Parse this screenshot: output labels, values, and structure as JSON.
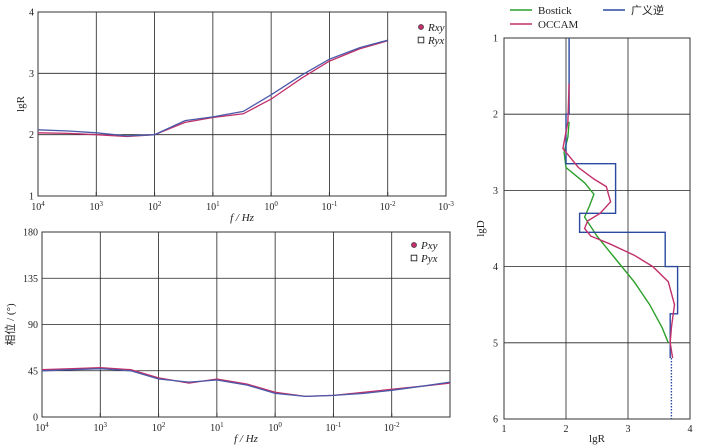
{
  "chart_data": [
    {
      "id": "resistivity",
      "type": "line",
      "ylabel": "lgR",
      "xlabel": "f / Hz",
      "x_scale": "log-reversed",
      "xlim": [
        10000,
        0.001
      ],
      "ylim": [
        1,
        4
      ],
      "x_ticks": [
        "10^4",
        "10^3",
        "10^2",
        "10^1",
        "10^0",
        "10^-1",
        "10^-2",
        "10^-3"
      ],
      "y_ticks": [
        "1",
        "2",
        "3",
        "4"
      ],
      "grid": true,
      "legend_position": "top-right",
      "series": [
        {
          "name": "Rxy",
          "color": "#c0306a",
          "x": [
            10000,
            3000,
            1000,
            300,
            100,
            30,
            10,
            3,
            1,
            0.3,
            0.1,
            0.03,
            0.01
          ],
          "y": [
            2.03,
            2.02,
            2.0,
            1.97,
            2.0,
            2.2,
            2.28,
            2.34,
            2.58,
            2.92,
            3.2,
            3.4,
            3.53
          ]
        },
        {
          "name": "Ryx",
          "color": "#4a5aa8",
          "x": [
            10000,
            3000,
            1000,
            300,
            100,
            30,
            10,
            3,
            1,
            0.3,
            0.1,
            0.03,
            0.01
          ],
          "y": [
            2.08,
            2.06,
            2.03,
            1.98,
            2.0,
            2.23,
            2.29,
            2.38,
            2.65,
            2.97,
            3.23,
            3.42,
            3.54
          ]
        }
      ]
    },
    {
      "id": "phase",
      "type": "line",
      "ylabel": "相位 / (°)",
      "xlabel": "f / Hz",
      "x_scale": "log-reversed",
      "xlim": [
        10000,
        0.001
      ],
      "ylim": [
        0,
        180
      ],
      "x_ticks": [
        "10^4",
        "10^3",
        "10^2",
        "10^1",
        "10^0",
        "10^-1",
        "10^-2"
      ],
      "y_ticks": [
        "0",
        "45",
        "90",
        "135",
        "180"
      ],
      "grid": true,
      "legend_position": "top-right",
      "series": [
        {
          "name": "Pxy",
          "color": "#c0306a",
          "x": [
            10000,
            3000,
            1000,
            300,
            100,
            30,
            10,
            3,
            1,
            0.3,
            0.1,
            0.03,
            0.01,
            0.003,
            0.001
          ],
          "y": [
            46,
            47,
            48,
            46,
            38,
            33,
            37,
            32,
            24,
            20,
            21,
            24,
            27,
            30,
            33
          ]
        },
        {
          "name": "Pyx",
          "color": "#4a5aa8",
          "x": [
            10000,
            3000,
            1000,
            300,
            100,
            30,
            10,
            3,
            1,
            0.3,
            0.1,
            0.03,
            0.01,
            0.003,
            0.001
          ],
          "y": [
            45,
            46,
            47,
            45,
            37,
            34,
            36,
            31,
            23,
            20,
            21,
            23,
            26,
            30,
            34
          ]
        }
      ]
    },
    {
      "id": "inversion",
      "type": "line",
      "xlabel": "lgR",
      "ylabel": "lgD",
      "xlim": [
        1,
        4
      ],
      "ylim": [
        1,
        6
      ],
      "y_inverted": true,
      "x_ticks": [
        "1",
        "2",
        "3",
        "4"
      ],
      "y_ticks": [
        "1",
        "2",
        "3",
        "4",
        "5",
        "6"
      ],
      "grid": true,
      "legend_position": "top",
      "series": [
        {
          "name": "Bostick",
          "color": "#2ca02c",
          "x": [
            2.05,
            2.03,
            1.97,
            2.0,
            2.3,
            2.45,
            2.38,
            2.3,
            2.5,
            2.8,
            3.1,
            3.35,
            3.55,
            3.65
          ],
          "y": [
            2.1,
            2.3,
            2.5,
            2.7,
            2.9,
            3.05,
            3.2,
            3.35,
            3.6,
            3.9,
            4.2,
            4.5,
            4.8,
            5.0
          ]
        },
        {
          "name": "广义逆",
          "color": "#2a4aa0",
          "x": [
            2.05,
            2.05,
            2.0,
            2.0,
            2.8,
            2.8,
            2.22,
            2.22,
            3.6,
            3.6,
            3.8,
            3.8,
            3.68,
            3.68
          ],
          "y": [
            1.0,
            2.0,
            2.0,
            2.65,
            2.65,
            3.3,
            3.3,
            3.55,
            3.55,
            4.0,
            4.0,
            4.62,
            4.62,
            5.2
          ]
        },
        {
          "name": "OCCAM",
          "color": "#c0306a",
          "x": [
            2.05,
            2.03,
            1.95,
            2.05,
            2.2,
            2.45,
            2.65,
            2.72,
            2.55,
            2.35,
            2.3,
            2.4,
            2.7,
            3.1,
            3.4,
            3.65,
            3.75,
            3.7,
            3.68,
            3.72
          ],
          "y": [
            1.6,
            2.1,
            2.45,
            2.55,
            2.7,
            2.85,
            2.95,
            3.15,
            3.3,
            3.4,
            3.5,
            3.6,
            3.7,
            3.85,
            4.0,
            4.2,
            4.5,
            4.8,
            5.0,
            5.2
          ]
        },
        {
          "name": "",
          "color": "#2a4aa0",
          "dotted": true,
          "x": [
            3.7,
            3.7
          ],
          "y": [
            5.2,
            6.0
          ]
        }
      ]
    }
  ]
}
